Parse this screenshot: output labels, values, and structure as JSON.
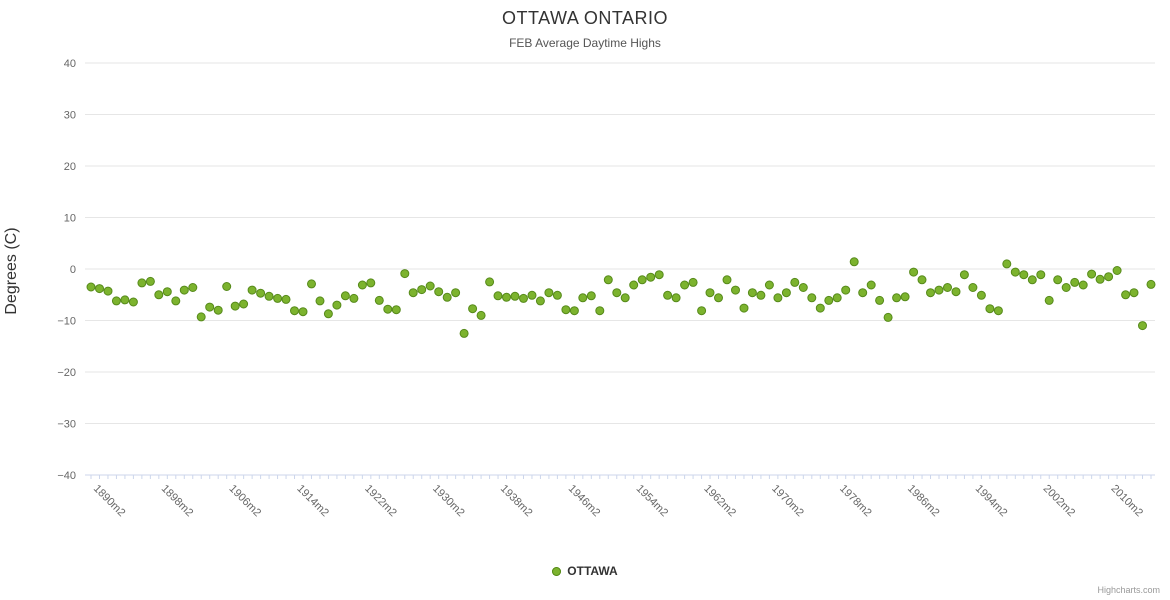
{
  "header": {
    "title": "OTTAWA ONTARIO",
    "subtitle": "FEB Average Daytime Highs"
  },
  "legend": {
    "label": "OTTAWA"
  },
  "credits": {
    "text": "Highcharts.com"
  },
  "colors": {
    "point_fill": "#7cb32e",
    "point_stroke": "#568a1a",
    "grid": "#e6e6e6",
    "axis": "#ccd6eb",
    "tick_label": "#666666"
  },
  "chart_data": {
    "type": "scatter",
    "title": "OTTAWA ONTARIO",
    "subtitle": "FEB Average Daytime Highs",
    "xlabel": "",
    "ylabel": "Degrees (C)",
    "ylim": [
      -40,
      40
    ],
    "y_ticks": [
      40,
      30,
      20,
      10,
      0,
      -10,
      -20,
      -30,
      -40
    ],
    "grid": true,
    "legend_position": "bottom",
    "x_start_year": 1890,
    "x_end_year": 2015,
    "x_tick_labels": [
      "1890m2",
      "1898m2",
      "1906m2",
      "1914m2",
      "1922m2",
      "1930m2",
      "1938m2",
      "1946m2",
      "1954m2",
      "1962m2",
      "1970m2",
      "1978m2",
      "1986m2",
      "1994m2",
      "2002m2",
      "2010m2"
    ],
    "x_label_interval_years": 8,
    "series": [
      {
        "name": "OTTAWA",
        "x_start": 1890,
        "values": [
          -3.5,
          -3.8,
          -4.3,
          -6.2,
          -6.0,
          -6.4,
          -2.7,
          -2.4,
          -5.0,
          -4.4,
          -6.2,
          -4.1,
          -3.6,
          -9.3,
          -7.4,
          -8.0,
          -3.4,
          -7.2,
          -6.8,
          -4.1,
          -4.7,
          -5.3,
          -5.7,
          -5.9,
          -8.1,
          -8.3,
          -2.9,
          -6.2,
          -8.7,
          -7.0,
          -5.2,
          -5.7,
          -3.1,
          -2.7,
          -6.1,
          -7.8,
          -7.9,
          -0.9,
          -4.6,
          -4.0,
          -3.3,
          -4.4,
          -5.5,
          -4.6,
          -12.5,
          -7.7,
          -9.0,
          -2.5,
          -5.2,
          -5.5,
          -5.3,
          -5.7,
          -5.1,
          -6.2,
          -4.6,
          -5.1,
          -7.9,
          -8.1,
          -5.6,
          -5.2,
          -8.1,
          -2.1,
          -4.6,
          -5.6,
          -3.1,
          -2.1,
          -1.6,
          -1.1,
          -5.1,
          -5.6,
          -3.1,
          -2.6,
          -8.1,
          -4.6,
          -5.6,
          -2.1,
          -4.1,
          -7.6,
          -4.6,
          -5.1,
          -3.1,
          -5.6,
          -4.6,
          -2.6,
          -3.6,
          -5.6,
          -7.6,
          -6.1,
          -5.6,
          -4.1,
          1.4,
          -4.6,
          -3.1,
          -6.1,
          -9.4,
          -5.6,
          -5.4,
          -0.6,
          -2.1,
          -4.6,
          -4.1,
          -3.6,
          -4.4,
          -1.1,
          -3.6,
          -5.1,
          -7.7,
          -8.1,
          1.0,
          -0.6,
          -1.1,
          -2.1,
          -1.1,
          -6.1,
          -2.1,
          -3.6,
          -2.6,
          -3.1,
          -1.0,
          -2.0,
          -1.5,
          -0.3,
          -5.0,
          -4.6,
          -11.0,
          -3.0
        ]
      }
    ]
  }
}
